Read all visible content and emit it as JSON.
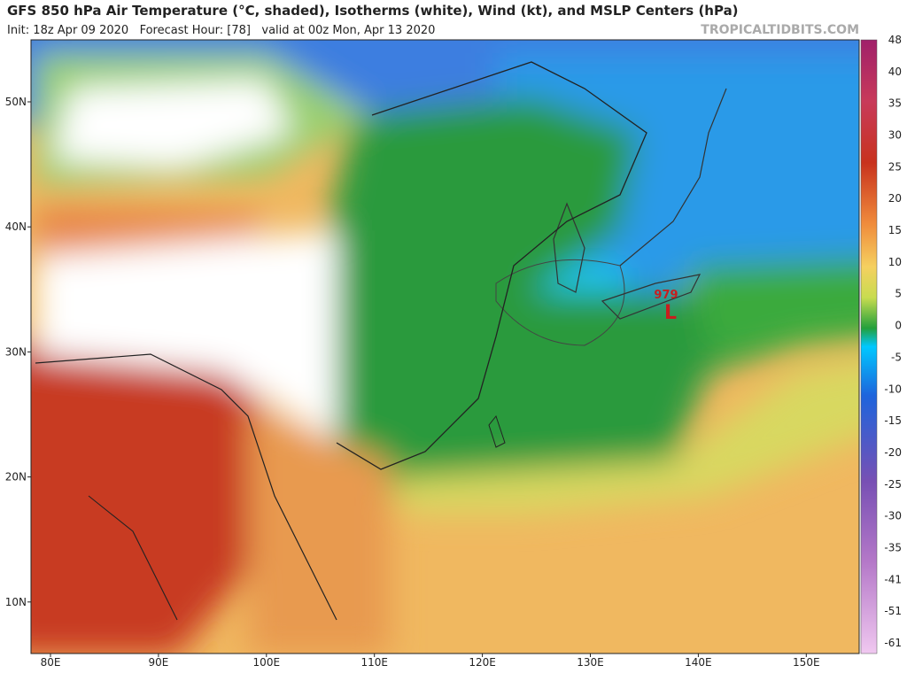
{
  "header": {
    "title": "GFS 850 hPa Air Temperature (°C, shaded), Isotherms (white), Wind (kt), and MSLP Centers (hPa)",
    "subtitle": "Init: 18z Apr 09 2020   Forecast Hour: [78]   valid at 00z Mon, Apr 13 2020",
    "watermark": "TROPICALTIDBITS.COM"
  },
  "map": {
    "lat_labels": [
      "50N",
      "40N",
      "30N",
      "20N",
      "10N"
    ],
    "lon_labels": [
      "80E",
      "90E",
      "100E",
      "110E",
      "120E",
      "130E",
      "140E",
      "150E"
    ],
    "low": {
      "pressure": "979",
      "symbol": "L"
    }
  },
  "colorbar": {
    "labels": [
      "48",
      "40",
      "35",
      "30",
      "25",
      "20",
      "15",
      "10",
      "5",
      "0",
      "-5",
      "-10",
      "-15",
      "-20",
      "-25",
      "-30",
      "-35",
      "-41",
      "-51",
      "-61"
    ]
  }
}
